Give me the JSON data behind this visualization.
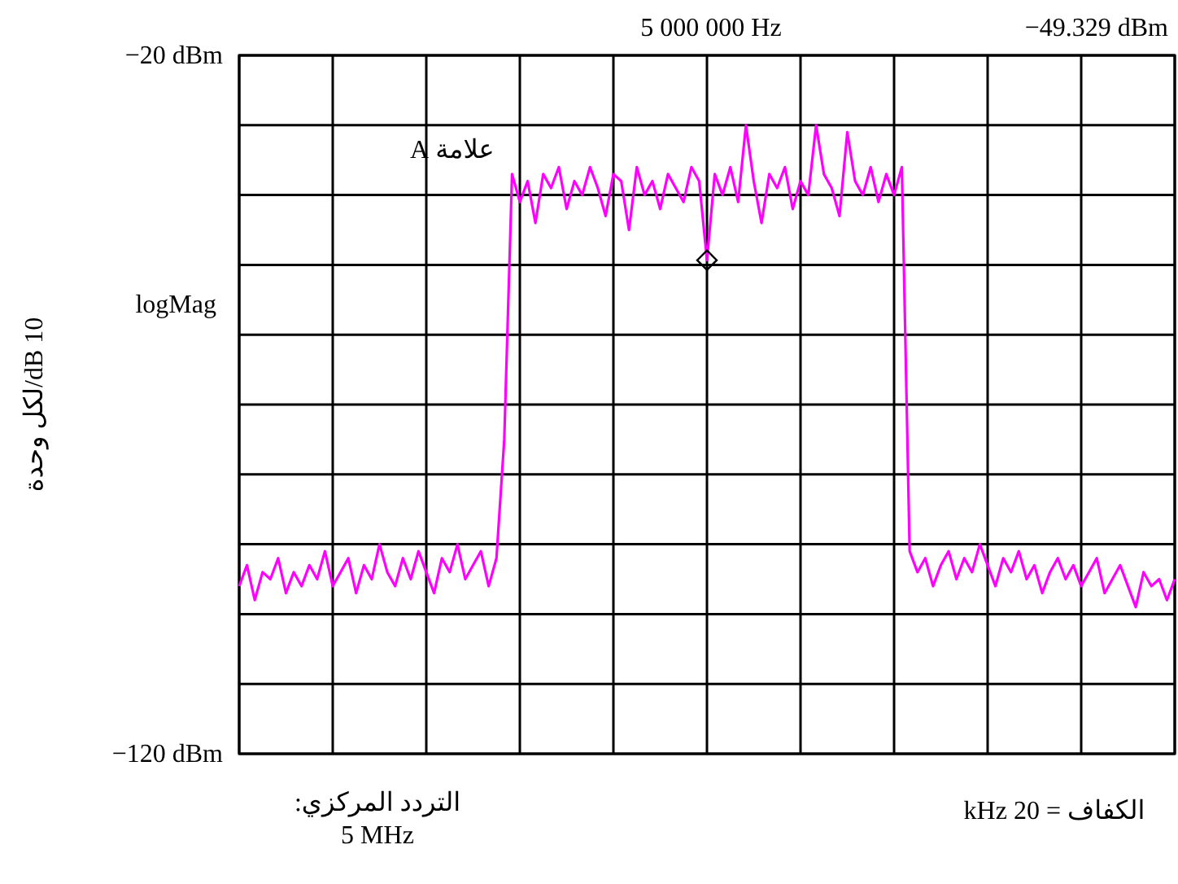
{
  "chart_data": {
    "type": "line",
    "ylabel": "10 dB/لكل وحدة",
    "tick_labels": "y",
    "grid": true,
    "ylim": [
      -120,
      -20
    ],
    "yticks": [
      {
        "value": -20,
        "label": "−20 dBm"
      },
      {
        "value": -30,
        "label": null
      },
      {
        "value": -40,
        "label": null
      },
      {
        "value": -50,
        "label": null
      },
      {
        "value": -60,
        "label": null
      },
      {
        "value": -70,
        "label": null
      },
      {
        "value": -80,
        "label": null
      },
      {
        "value": -90,
        "label": null
      },
      {
        "value": -100,
        "label": null
      },
      {
        "value": -110,
        "label": null
      },
      {
        "value": -120,
        "label": "−120 dBm"
      }
    ],
    "annotations": [
      "5 000 000 Hz",
      "−49.329 dBm",
      "logMag",
      "علامة A",
      "التردد المركزي:\n5 MHz",
      "الكفاف = 20 kHz"
    ],
    "categories": [
      null,
      null,
      null,
      null,
      null,
      null,
      null,
      null,
      null,
      null,
      null,
      null,
      null,
      null,
      null,
      null,
      null,
      null,
      null,
      null,
      null,
      null,
      null,
      null,
      null,
      null,
      null,
      null,
      null,
      null,
      null,
      null,
      null,
      null,
      null,
      null,
      null,
      null,
      null,
      null,
      null,
      null,
      null,
      null,
      null,
      null,
      null,
      null,
      null,
      null,
      null,
      null,
      null,
      null,
      null,
      null,
      null,
      null,
      null,
      null,
      null,
      null,
      null,
      null,
      null,
      null,
      null,
      null,
      null,
      null,
      null,
      null,
      null,
      null,
      null,
      null,
      null,
      null,
      null,
      null,
      null,
      null,
      null,
      null,
      null,
      null,
      null,
      null,
      null,
      null,
      null,
      null,
      null,
      null,
      null,
      null,
      null,
      null,
      null,
      null,
      null,
      null,
      null,
      null,
      null,
      null,
      null,
      null,
      null,
      null,
      null,
      null,
      null,
      null,
      null,
      null,
      null,
      null,
      null,
      null,
      null
    ],
    "series": [
      {
        "color": "#ff00ff",
        "values": [
          -96,
          -93,
          -98,
          -94,
          -95,
          -92,
          -97,
          -94,
          -96,
          -93,
          -95,
          -91,
          -96,
          -94,
          -92,
          -97,
          -93,
          -95,
          -90,
          -94,
          -96,
          -92,
          -95,
          -91,
          -94,
          -97,
          -92,
          -94,
          -90,
          -95,
          -93,
          -91,
          -96,
          -92,
          -75,
          -37,
          -41,
          -38,
          -44,
          -37,
          -39,
          -36,
          -42,
          -38,
          -40,
          -36,
          -39,
          -43,
          -37,
          -38,
          -45,
          -36,
          -40,
          -38,
          -42,
          -37,
          -39,
          -41,
          -36,
          -38,
          -49.329,
          -37,
          -40,
          -36,
          -41,
          -30,
          -38,
          -44,
          -37,
          -39,
          -36,
          -42,
          -38,
          -40,
          -30,
          -37,
          -39,
          -43,
          -31,
          -38,
          -40,
          -36,
          -41,
          -37,
          -40,
          -36,
          -91,
          -94,
          -92,
          -96,
          -93,
          -91,
          -95,
          -92,
          -94,
          -90,
          -93,
          -96,
          -92,
          -94,
          -91,
          -95,
          -93,
          -97,
          -94,
          -92,
          -95,
          -93,
          -96,
          -94,
          -92,
          -97,
          -95,
          -93,
          -96,
          -99,
          -94,
          -96,
          -95,
          -98,
          -95
        ]
      },
      {
        "type": "scatter",
        "marker": "diamond",
        "color": "#000000",
        "values": [
          null,
          null,
          null,
          null,
          null,
          null,
          null,
          null,
          null,
          null,
          null,
          null,
          null,
          null,
          null,
          null,
          null,
          null,
          null,
          null,
          null,
          null,
          null,
          null,
          null,
          null,
          null,
          null,
          null,
          null,
          null,
          null,
          null,
          null,
          null,
          null,
          null,
          null,
          null,
          null,
          null,
          null,
          null,
          null,
          null,
          null,
          null,
          null,
          null,
          null,
          null,
          null,
          null,
          null,
          null,
          null,
          null,
          null,
          null,
          null,
          -49.329,
          null,
          null,
          null,
          null,
          null,
          null,
          null,
          null,
          null,
          null,
          null,
          null,
          null,
          null,
          null,
          null,
          null,
          null,
          null,
          null,
          null,
          null,
          null,
          null,
          null,
          null,
          null,
          null,
          null,
          null,
          null,
          null,
          null,
          null,
          null,
          null,
          null,
          null,
          null,
          null,
          null,
          null,
          null,
          null,
          null,
          null,
          null,
          null,
          null,
          null,
          null,
          null,
          null,
          null,
          null,
          null,
          null,
          null,
          null,
          null
        ]
      }
    ]
  }
}
